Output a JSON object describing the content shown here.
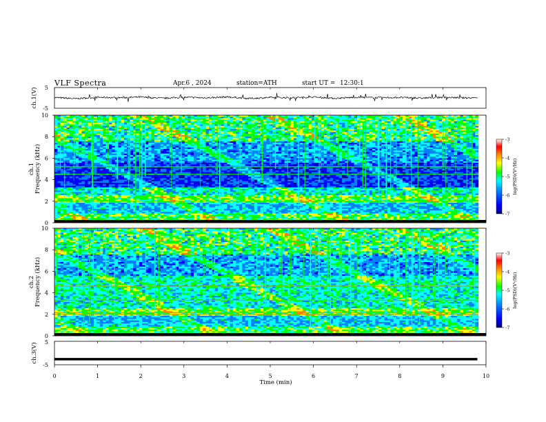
{
  "header": {
    "title": "VLF Spectra",
    "date": "Apr.6 , 2024",
    "station": "station=ATH",
    "start_ut_label": "start UT =",
    "start_ut_value": "12:30:1"
  },
  "colors": {
    "scale": [
      "#000080",
      "#0000ff",
      "#0080ff",
      "#00ffff",
      "#00ff00",
      "#ffff00",
      "#ff8000",
      "#ff0000",
      "#ffffff"
    ],
    "frame": "#000000",
    "background": "#ffffff"
  },
  "chart_data": [
    {
      "type": "line",
      "panel": "ch1-waveform",
      "ylabel": "ch.1(V)",
      "ylim": [
        -5,
        5
      ],
      "y_ticks": [
        "5",
        "-5"
      ],
      "baseline_v": 0.1,
      "x": [
        0,
        0.5,
        1,
        1.5,
        2,
        2.5,
        3,
        3.5,
        4,
        4.5,
        5,
        5.5,
        6,
        6.5,
        7,
        7.5,
        8,
        8.5,
        9,
        9.5,
        9.8
      ],
      "y": [
        0.2,
        -0.4,
        0.3,
        0.1,
        0.4,
        -0.2,
        0.3,
        0.0,
        0.5,
        -0.3,
        0.2,
        0.1,
        0.4,
        -0.2,
        0.3,
        0.1,
        0.2,
        -0.1,
        0.3,
        0.0,
        0.2
      ]
    },
    {
      "type": "heatmap",
      "panel": "ch1-spectrogram",
      "ylabel_channel": "ch.1",
      "ylabel": "Frequency (kHz)",
      "ylim": [
        0,
        10
      ],
      "y_ticks": [
        "0",
        "2",
        "4",
        "6",
        "8",
        "10"
      ],
      "colorbar": {
        "label": "log(PSD)(V²/Hz)",
        "range": [
          -7,
          -3
        ],
        "ticks": [
          "-3",
          "-4",
          "-5",
          "-6",
          "-7"
        ]
      }
    },
    {
      "type": "heatmap",
      "panel": "ch2-spectrogram",
      "ylabel_channel": "ch.2",
      "ylabel": "Frequency (kHz)",
      "ylim": [
        0,
        10
      ],
      "y_ticks": [
        "0",
        "2",
        "4",
        "6",
        "8",
        "10"
      ],
      "colorbar": {
        "label": "log(PSD)(V²/Hz)",
        "range": [
          -7,
          -3
        ],
        "ticks": [
          "-3",
          "-4",
          "-5",
          "-6",
          "-7"
        ]
      }
    },
    {
      "type": "line",
      "panel": "ch3-waveform",
      "ylabel": "ch.3(V)",
      "ylim": [
        -5,
        5
      ],
      "y_ticks": [
        "5",
        "-5"
      ],
      "x": [
        0,
        9.8
      ],
      "y": [
        -2.6,
        -2.6
      ]
    }
  ],
  "x_axis": {
    "label": "Time (min)",
    "range": [
      0,
      10
    ],
    "ticks": [
      "0",
      "1",
      "2",
      "3",
      "4",
      "5",
      "6",
      "7",
      "8",
      "9",
      "10"
    ]
  }
}
